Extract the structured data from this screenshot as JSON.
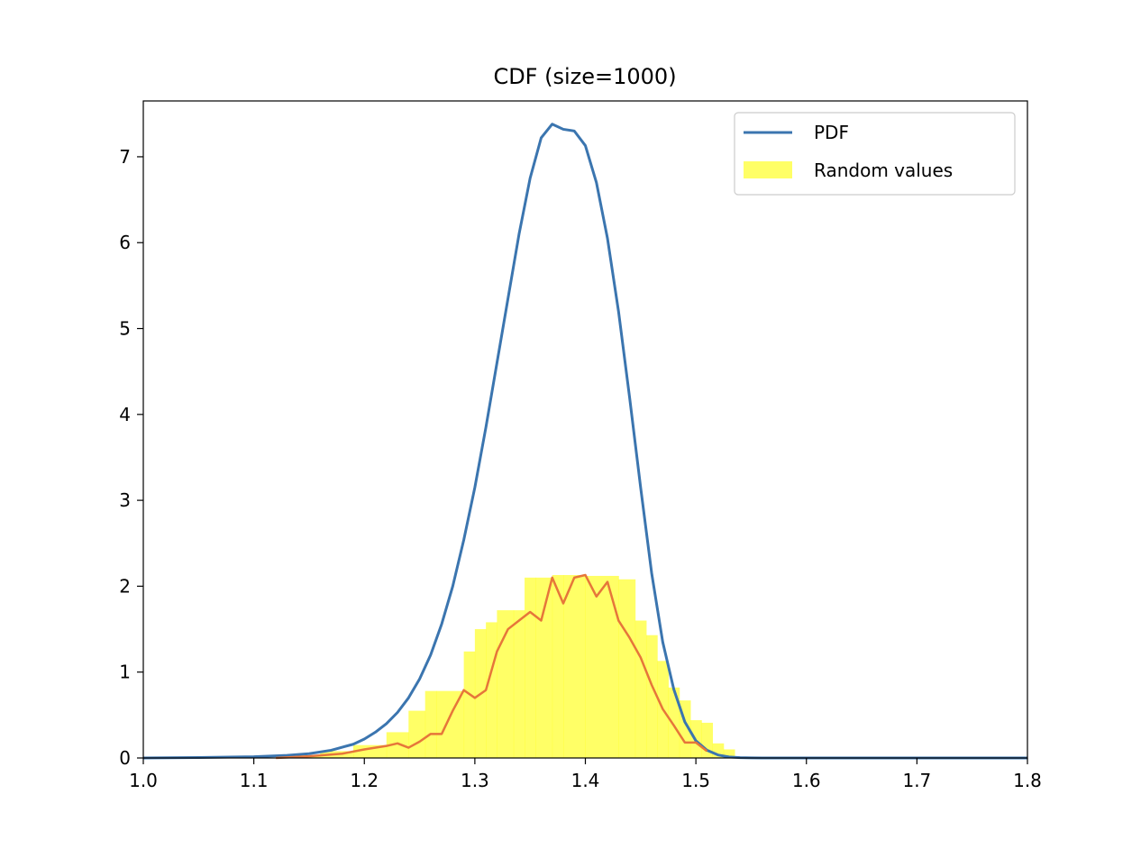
{
  "chart_data": {
    "type": "line",
    "title": "CDF (size=1000)",
    "xlabel": "",
    "ylabel": "",
    "xlim": [
      1.0,
      1.8
    ],
    "ylim": [
      0,
      7.65
    ],
    "grid": false,
    "legend_position": "top-right",
    "x_ticks": [
      "1.0",
      "1.1",
      "1.2",
      "1.3",
      "1.4",
      "1.5",
      "1.6",
      "1.7",
      "1.8"
    ],
    "y_ticks": [
      "0",
      "1",
      "2",
      "3",
      "4",
      "5",
      "6",
      "7"
    ],
    "series": [
      {
        "name": "PDF",
        "kind": "line",
        "color": "#3b75af",
        "x": [
          1.0,
          1.05,
          1.1,
          1.13,
          1.15,
          1.17,
          1.19,
          1.2,
          1.21,
          1.22,
          1.23,
          1.24,
          1.25,
          1.26,
          1.27,
          1.28,
          1.29,
          1.3,
          1.31,
          1.32,
          1.33,
          1.34,
          1.35,
          1.36,
          1.37,
          1.38,
          1.39,
          1.4,
          1.41,
          1.42,
          1.43,
          1.44,
          1.45,
          1.46,
          1.47,
          1.48,
          1.49,
          1.5,
          1.51,
          1.52,
          1.53,
          1.54,
          1.55,
          1.56,
          1.58,
          1.6,
          1.7,
          1.8
        ],
        "y": [
          0.0,
          0.005,
          0.015,
          0.03,
          0.05,
          0.09,
          0.16,
          0.22,
          0.3,
          0.4,
          0.53,
          0.7,
          0.92,
          1.2,
          1.56,
          2.0,
          2.54,
          3.15,
          3.85,
          4.6,
          5.35,
          6.1,
          6.75,
          7.22,
          7.38,
          7.32,
          7.3,
          7.13,
          6.7,
          6.05,
          5.2,
          4.2,
          3.15,
          2.15,
          1.35,
          0.8,
          0.42,
          0.2,
          0.09,
          0.035,
          0.012,
          0.004,
          0.001,
          0.0,
          0.0,
          0.0,
          0.0,
          0.0
        ]
      },
      {
        "name": "",
        "kind": "line",
        "color": "#e6763a",
        "x": [
          1.12,
          1.15,
          1.18,
          1.2,
          1.22,
          1.23,
          1.24,
          1.25,
          1.26,
          1.27,
          1.28,
          1.29,
          1.3,
          1.31,
          1.32,
          1.33,
          1.34,
          1.35,
          1.36,
          1.37,
          1.38,
          1.39,
          1.4,
          1.41,
          1.42,
          1.43,
          1.44,
          1.45,
          1.46,
          1.47,
          1.48,
          1.49,
          1.5,
          1.51
        ],
        "y": [
          0.0,
          0.02,
          0.05,
          0.1,
          0.14,
          0.17,
          0.12,
          0.19,
          0.28,
          0.28,
          0.55,
          0.79,
          0.7,
          0.79,
          1.24,
          1.5,
          1.6,
          1.7,
          1.6,
          2.1,
          1.8,
          2.1,
          2.13,
          1.88,
          2.05,
          1.6,
          1.4,
          1.17,
          0.85,
          0.57,
          0.38,
          0.18,
          0.18,
          0.08
        ]
      },
      {
        "name": "Random values",
        "kind": "hist",
        "color": "#ffff33",
        "bin_edges": [
          1.12,
          1.16,
          1.19,
          1.22,
          1.24,
          1.255,
          1.265,
          1.29,
          1.3,
          1.31,
          1.32,
          1.335,
          1.345,
          1.355,
          1.37,
          1.38,
          1.4,
          1.43,
          1.445,
          1.455,
          1.465,
          1.475,
          1.485,
          1.495,
          1.505,
          1.515,
          1.525,
          1.535
        ],
        "heights": [
          0.03,
          0.08,
          0.15,
          0.3,
          0.55,
          0.78,
          0.78,
          1.24,
          1.5,
          1.58,
          1.72,
          1.72,
          2.1,
          2.1,
          2.13,
          2.13,
          2.12,
          2.08,
          1.6,
          1.43,
          1.13,
          0.82,
          0.67,
          0.44,
          0.41,
          0.17,
          0.1
        ]
      }
    ]
  }
}
